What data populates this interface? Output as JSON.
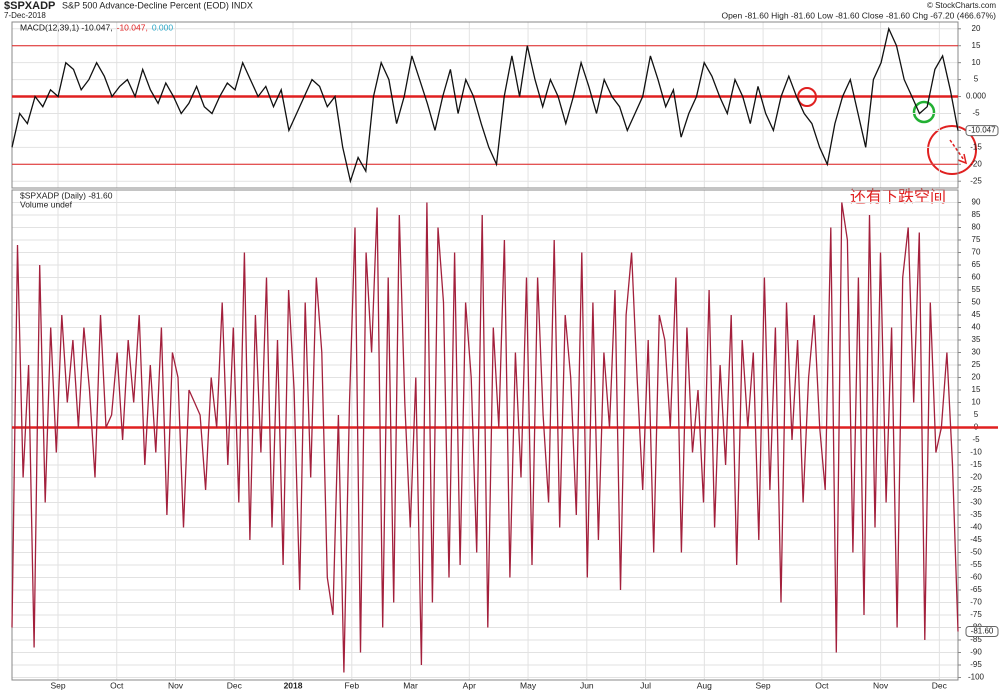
{
  "header": {
    "symbol": "$SPXADP",
    "name": "S&P 500 Advance-Decline Percent (EOD) INDX",
    "date": "7-Dec-2018",
    "source": "© StockCharts.com",
    "quote": "Open -81.60  High -81.60  Low -81.60  Close -81.60  Chg -67.20 (466.67%)"
  },
  "months": [
    "Sep",
    "Oct",
    "Nov",
    "Dec",
    "2018",
    "Feb",
    "Mar",
    "Apr",
    "May",
    "Jun",
    "Jul",
    "Aug",
    "Sep",
    "Oct",
    "Nov",
    "Dec"
  ],
  "annotation": "还有下跌空间",
  "chart_data": [
    {
      "type": "line",
      "legend": [
        "MACD(12,39,1) -10.047,",
        "-10.047,",
        "0.000"
      ],
      "ylim": [
        -27,
        22
      ],
      "yticks": [
        20,
        15,
        10,
        5,
        {
          "value": 0,
          "label": "0.000"
        },
        -5,
        -10,
        -15,
        -20,
        -25
      ],
      "reference_lines": [
        15,
        0,
        -20
      ],
      "current_value": -10.047,
      "grid": true,
      "series": [
        {
          "name": "MACD(12,39,1)",
          "color": "#111111",
          "values": [
            -15,
            -5,
            -8,
            0,
            -3,
            2,
            0,
            10,
            8,
            2,
            5,
            10,
            6,
            0,
            3,
            5,
            0,
            8,
            2,
            -2,
            4,
            0,
            -5,
            -2,
            3,
            -3,
            -5,
            0,
            4,
            2,
            10,
            5,
            0,
            3,
            -3,
            2,
            -10,
            -5,
            0,
            5,
            3,
            -3,
            0,
            -15,
            -25,
            -18,
            -22,
            0,
            10,
            5,
            -8,
            0,
            12,
            5,
            -2,
            -10,
            0,
            8,
            -5,
            5,
            0,
            -8,
            -15,
            -20,
            0,
            12,
            0,
            15,
            5,
            -3,
            5,
            0,
            -8,
            0,
            10,
            3,
            -5,
            5,
            0,
            -3,
            -10,
            -5,
            0,
            12,
            5,
            -3,
            2,
            -12,
            -5,
            0,
            10,
            6,
            0,
            -5,
            5,
            0,
            -8,
            3,
            -5,
            -10,
            0,
            6,
            0,
            -5,
            -8,
            -15,
            -20,
            -8,
            0,
            5,
            -5,
            -15,
            5,
            10,
            20,
            15,
            5,
            0,
            -5,
            -3,
            8,
            12,
            2,
            -10.047
          ]
        }
      ]
    },
    {
      "type": "line",
      "legend": [
        "$SPXADP (Daily) -81.60",
        "Volume undef"
      ],
      "ylim": [
        -101,
        95
      ],
      "yticks": [
        90,
        85,
        80,
        75,
        70,
        65,
        60,
        55,
        50,
        45,
        40,
        35,
        30,
        25,
        20,
        15,
        10,
        5,
        0,
        -5,
        -10,
        -15,
        -20,
        -25,
        -30,
        -35,
        -40,
        -45,
        -50,
        -55,
        -60,
        -65,
        -70,
        -75,
        -80,
        -85,
        -90,
        -95,
        -100
      ],
      "reference_lines": [
        0
      ],
      "current_value": {
        "value": -81.6,
        "label": "-81.60"
      },
      "grid": true,
      "series": [
        {
          "name": "$SPXADP (Daily)",
          "color": "#a3203c",
          "values": [
            -80,
            73,
            -20,
            25,
            -88,
            65,
            -30,
            40,
            -10,
            45,
            10,
            35,
            0,
            40,
            15,
            -20,
            45,
            0,
            5,
            30,
            -5,
            35,
            10,
            45,
            -15,
            25,
            -10,
            40,
            -35,
            30,
            20,
            -40,
            15,
            10,
            5,
            -25,
            20,
            0,
            50,
            -15,
            40,
            -30,
            70,
            -45,
            45,
            -10,
            60,
            -40,
            35,
            -55,
            55,
            15,
            -65,
            50,
            -20,
            60,
            30,
            -60,
            -75,
            5,
            -98,
            10,
            80,
            -90,
            70,
            30,
            88,
            -80,
            60,
            -70,
            85,
            10,
            -40,
            20,
            -95,
            90,
            -70,
            80,
            50,
            -60,
            70,
            -55,
            50,
            20,
            -50,
            85,
            -80,
            40,
            0,
            75,
            -60,
            30,
            -20,
            60,
            -55,
            60,
            5,
            -30,
            75,
            -40,
            45,
            20,
            -35,
            70,
            -60,
            50,
            -45,
            30,
            0,
            55,
            -65,
            45,
            70,
            20,
            -25,
            35,
            -50,
            45,
            35,
            0,
            60,
            -50,
            40,
            -10,
            15,
            -30,
            55,
            -40,
            25,
            -15,
            45,
            -55,
            35,
            0,
            30,
            -45,
            60,
            -25,
            40,
            -70,
            50,
            -5,
            35,
            -30,
            20,
            45,
            0,
            -25,
            80,
            -90,
            90,
            75,
            -50,
            60,
            -75,
            85,
            -40,
            70,
            -30,
            40,
            -80,
            60,
            80,
            10,
            78,
            -85,
            50,
            -10,
            0,
            30,
            -15,
            -81.6
          ]
        }
      ]
    }
  ]
}
